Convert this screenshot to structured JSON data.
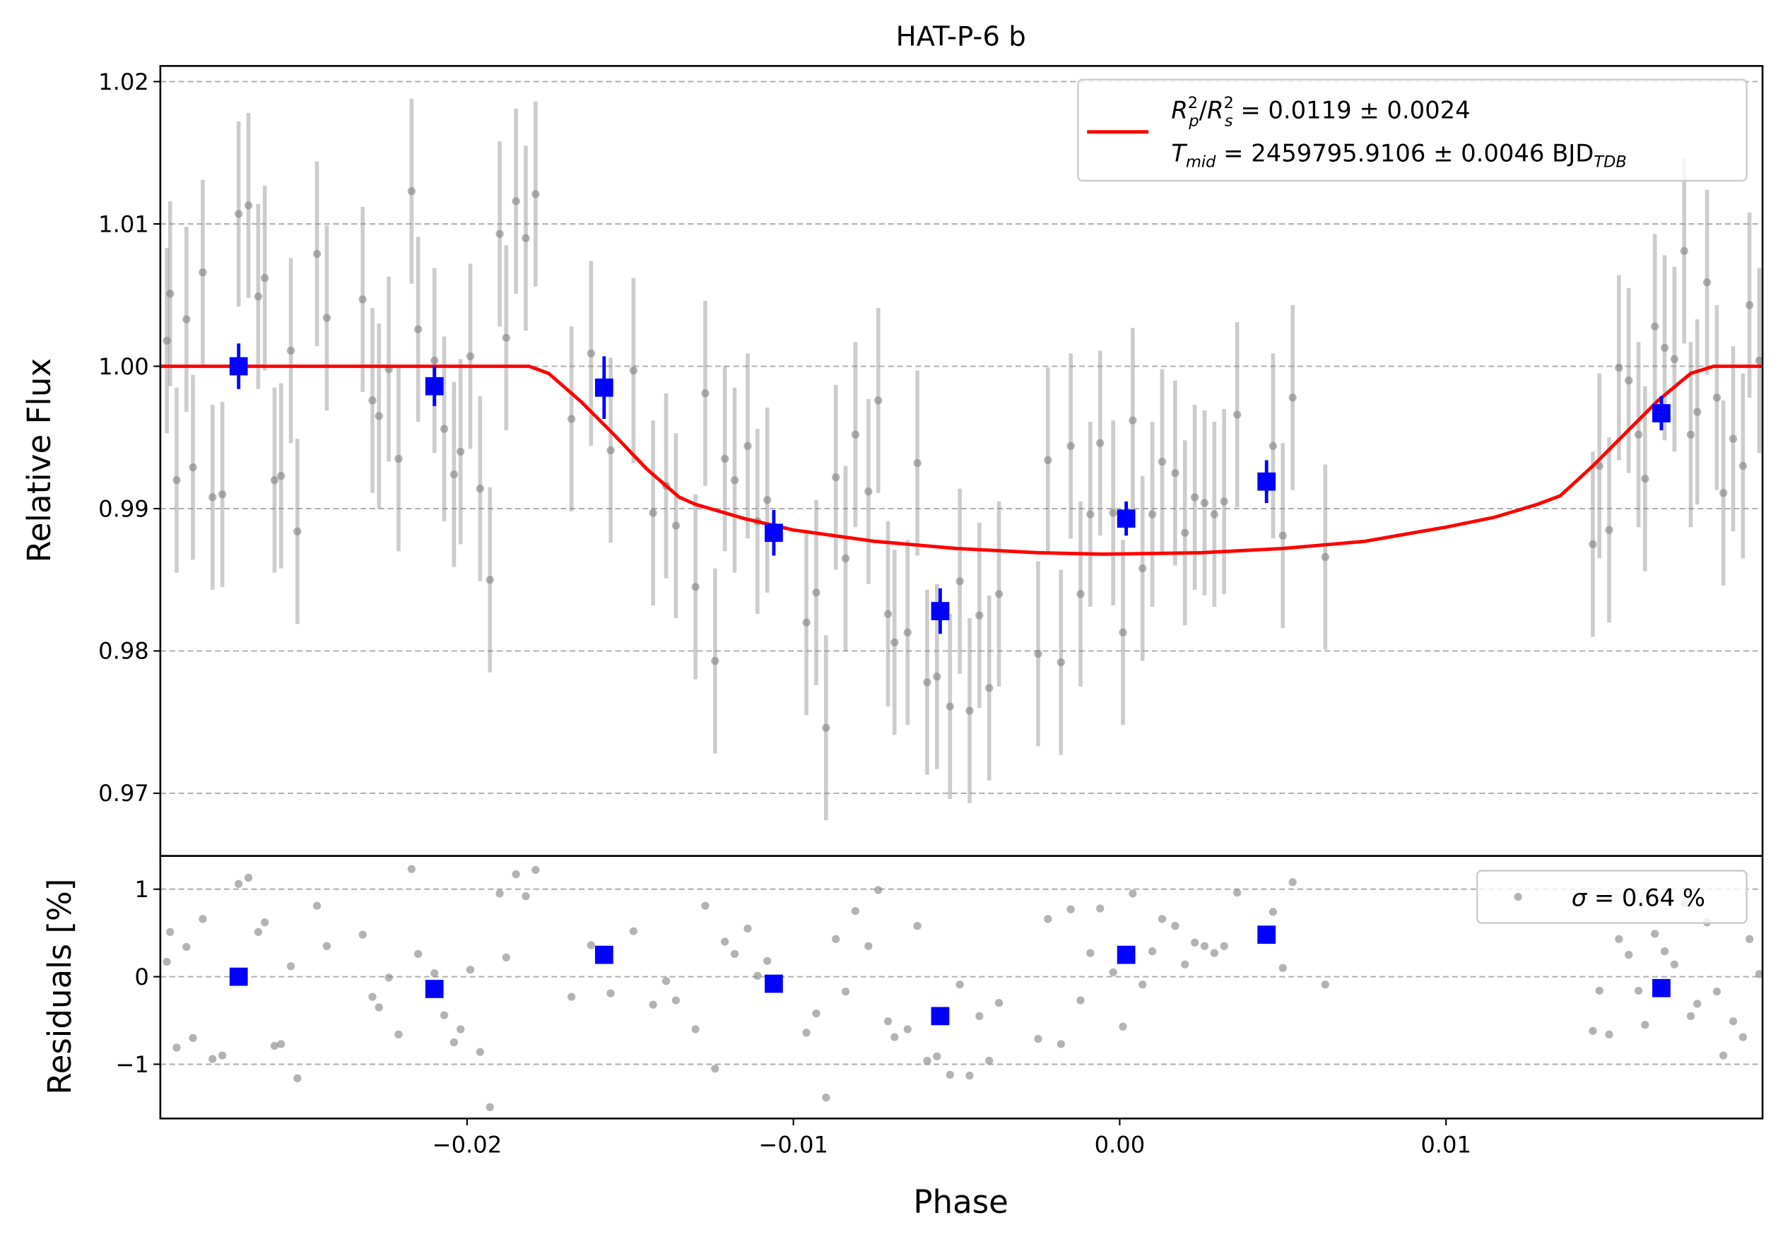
{
  "chart_data": [
    {
      "type": "errorbar",
      "title": "HAT-P-6 b",
      "ylabel": "Relative Flux",
      "xlim": [
        -0.0294,
        0.0197
      ],
      "ylim": [
        0.9656,
        1.0211
      ],
      "yticks": [
        0.97,
        0.98,
        0.99,
        {
          "value": 1,
          "label": "1.00"
        },
        1.01,
        1.02
      ],
      "grid": true,
      "series": [
        {
          "kind": "line",
          "color": "#ff0000",
          "label_parts": [
            "R",
            "2",
            "p",
            "/",
            "R",
            "2",
            "s",
            " = 0.0119 ± 0.0024"
          ],
          "label2_parts": [
            "T",
            "mid",
            " = 2459795.9106 ± 0.0046 BJD",
            "TDB"
          ],
          "x": [
            -0.0294,
            -0.0181,
            -0.0175,
            -0.0165,
            -0.0155,
            -0.0145,
            -0.0135,
            -0.013,
            -0.0115,
            -0.01,
            -0.0075,
            -0.005,
            -0.0025,
            -0.0005,
            0.0025,
            0.005,
            0.0075,
            0.01,
            0.0115,
            0.0128,
            0.0135,
            0.0145,
            0.0155,
            0.0165,
            0.0175,
            0.0182,
            0.0197
          ],
          "values": [
            1,
            1,
            0.9995,
            0.9975,
            0.9952,
            0.9928,
            0.9908,
            0.9903,
            0.9893,
            0.9885,
            0.9877,
            0.9872,
            0.9869,
            0.9868,
            0.9869,
            0.9872,
            0.9877,
            0.9887,
            0.9894,
            0.9903,
            0.9909,
            0.993,
            0.9953,
            0.9976,
            0.9995,
            1,
            1
          ]
        },
        {
          "kind": "points",
          "color": "#808080",
          "yerr": 0.0065,
          "x": [
            -0.0292,
            -0.0291,
            -0.0289,
            -0.0286,
            -0.0284,
            -0.0281,
            -0.0278,
            -0.0275,
            -0.027,
            -0.0267,
            -0.0264,
            -0.0262,
            -0.0259,
            -0.0257,
            -0.0254,
            -0.0252,
            -0.0246,
            -0.0243,
            -0.0232,
            -0.0229,
            -0.0227,
            -0.0224,
            -0.0221,
            -0.0217,
            -0.0215,
            -0.021,
            -0.0207,
            -0.0204,
            -0.0202,
            -0.0199,
            -0.0196,
            -0.0193,
            -0.019,
            -0.0188,
            -0.0185,
            -0.0182,
            -0.0179,
            -0.0168,
            -0.0162,
            -0.0156,
            -0.0149,
            -0.0143,
            -0.0139,
            -0.0136,
            -0.013,
            -0.0127,
            -0.0124,
            -0.0121,
            -0.0118,
            -0.0114,
            -0.0111,
            -0.0108,
            -0.0096,
            -0.0093,
            -0.009,
            -0.0087,
            -0.0084,
            -0.0081,
            -0.0077,
            -0.0074,
            -0.0071,
            -0.0069,
            -0.0065,
            -0.0062,
            -0.0059,
            -0.0056,
            -0.0052,
            -0.0049,
            -0.0046,
            -0.0043,
            -0.004,
            -0.0037,
            -0.0025,
            -0.0022,
            -0.0018,
            -0.0015,
            -0.0012,
            -0.0009,
            -0.0006,
            -0.0002,
            0.0001,
            0.0004,
            0.0007,
            0.001,
            0.0013,
            0.0017,
            0.002,
            0.0023,
            0.0026,
            0.0029,
            0.0032,
            0.0036,
            0.0047,
            0.005,
            0.0053,
            0.0063,
            0.0145,
            0.0147,
            0.015,
            0.0153,
            0.0156,
            0.0159,
            0.0161,
            0.0164,
            0.0167,
            0.017,
            0.0173,
            0.0175,
            0.0177,
            0.018,
            0.0183,
            0.0185,
            0.0188,
            0.0191,
            0.0193,
            0.0196
          ],
          "values": [
            1.0018,
            1.0051,
            0.992,
            1.0033,
            0.9929,
            1.0066,
            0.9908,
            0.991,
            1.0107,
            1.0113,
            1.0049,
            1.0062,
            0.992,
            0.9923,
            1.0011,
            0.9884,
            1.0079,
            1.0034,
            1.0047,
            0.9976,
            0.9965,
            0.9998,
            0.9935,
            1.0123,
            1.0026,
            1.0004,
            0.9956,
            0.9924,
            0.994,
            1.0007,
            0.9914,
            0.985,
            1.0093,
            1.002,
            1.0116,
            1.009,
            1.0121,
            0.9963,
            1.0009,
            0.9941,
            0.9997,
            0.9897,
            0.9916,
            0.9888,
            0.9845,
            0.9981,
            0.9793,
            0.9935,
            0.992,
            0.9944,
            0.9891,
            0.9906,
            0.982,
            0.9841,
            0.9746,
            0.9922,
            0.9865,
            0.9952,
            0.9912,
            0.9976,
            0.9826,
            0.9806,
            0.9813,
            0.9932,
            0.9778,
            0.9782,
            0.9761,
            0.9849,
            0.9758,
            0.9825,
            0.9774,
            0.984,
            0.9798,
            0.9934,
            0.9792,
            0.9944,
            0.984,
            0.9896,
            0.9946,
            0.9897,
            0.9813,
            0.9962,
            0.9858,
            0.9896,
            0.9933,
            0.9925,
            0.9883,
            0.9908,
            0.9904,
            0.9896,
            0.9905,
            0.9966,
            0.9944,
            0.9881,
            0.9978,
            0.9866,
            0.9875,
            0.993,
            0.9885,
            0.9999,
            0.999,
            0.9952,
            0.9921,
            1.0028,
            1.0013,
            1.0005,
            1.0081,
            0.9952,
            0.9968,
            1.0059,
            0.9978,
            0.9911,
            0.9949,
            0.993,
            1.0043,
            1.0004
          ]
        },
        {
          "kind": "binned",
          "color": "#0000ff",
          "x": [
            -0.027,
            -0.021,
            -0.0158,
            -0.0106,
            -0.0055,
            0.0002,
            0.0045,
            0.0166
          ],
          "values": [
            1.0,
            0.9986,
            0.9985,
            0.9883,
            0.9828,
            0.9893,
            0.9919,
            0.9967
          ],
          "yerr": [
            0.0016,
            0.0014,
            0.0022,
            0.0016,
            0.0016,
            0.0012,
            0.0015,
            0.0012
          ]
        }
      ]
    },
    {
      "type": "errorbar",
      "xlabel": "Phase",
      "ylabel": "Residuals [%]",
      "xlim": [
        -0.0294,
        0.0197
      ],
      "ylim": [
        -1.62,
        1.38
      ],
      "xticks": [
        {
          "value": -0.02,
          "label": "−0.02"
        },
        {
          "value": -0.01,
          "label": "−0.01"
        },
        {
          "value": 0,
          "label": "0.00"
        },
        0.01
      ],
      "yticks": [
        {
          "value": -1,
          "label": "−1"
        },
        0,
        1
      ],
      "grid": true,
      "series": [
        {
          "kind": "points",
          "color": "#808080",
          "label_parts": [
            "σ",
            " = 0.64 %"
          ],
          "x": [
            -0.0292,
            -0.0291,
            -0.0289,
            -0.0286,
            -0.0284,
            -0.0281,
            -0.0278,
            -0.0275,
            -0.027,
            -0.0267,
            -0.0264,
            -0.0262,
            -0.0259,
            -0.0257,
            -0.0254,
            -0.0252,
            -0.0246,
            -0.0243,
            -0.0232,
            -0.0229,
            -0.0227,
            -0.0224,
            -0.0221,
            -0.0217,
            -0.0215,
            -0.021,
            -0.0207,
            -0.0204,
            -0.0202,
            -0.0199,
            -0.0196,
            -0.0193,
            -0.019,
            -0.0188,
            -0.0185,
            -0.0182,
            -0.0179,
            -0.0168,
            -0.0162,
            -0.0156,
            -0.0149,
            -0.0143,
            -0.0139,
            -0.0136,
            -0.013,
            -0.0127,
            -0.0124,
            -0.0121,
            -0.0118,
            -0.0114,
            -0.0111,
            -0.0108,
            -0.0096,
            -0.0093,
            -0.009,
            -0.0087,
            -0.0084,
            -0.0081,
            -0.0077,
            -0.0074,
            -0.0071,
            -0.0069,
            -0.0065,
            -0.0062,
            -0.0059,
            -0.0056,
            -0.0052,
            -0.0049,
            -0.0046,
            -0.0043,
            -0.004,
            -0.0037,
            -0.0025,
            -0.0022,
            -0.0018,
            -0.0015,
            -0.0012,
            -0.0009,
            -0.0006,
            -0.0002,
            0.0001,
            0.0004,
            0.0007,
            0.001,
            0.0013,
            0.0017,
            0.002,
            0.0023,
            0.0026,
            0.0029,
            0.0032,
            0.0036,
            0.0047,
            0.005,
            0.0053,
            0.0063,
            0.0145,
            0.0147,
            0.015,
            0.0153,
            0.0156,
            0.0159,
            0.0161,
            0.0164,
            0.0167,
            0.017,
            0.0173,
            0.0175,
            0.0177,
            0.018,
            0.0183,
            0.0185,
            0.0188,
            0.0191,
            0.0193,
            0.0196
          ],
          "values": [
            0.17,
            0.51,
            -0.81,
            0.34,
            -0.7,
            0.66,
            -0.94,
            -0.9,
            1.06,
            1.13,
            0.51,
            0.62,
            -0.79,
            -0.77,
            0.12,
            -1.16,
            0.81,
            0.35,
            0.48,
            -0.23,
            -0.35,
            -0.01,
            -0.66,
            1.23,
            0.26,
            0.04,
            -0.44,
            -0.75,
            -0.6,
            0.08,
            -0.86,
            -1.49,
            0.95,
            0.22,
            1.17,
            0.92,
            1.22,
            -0.23,
            0.36,
            -0.19,
            0.52,
            -0.32,
            -0.05,
            -0.27,
            -0.6,
            0.81,
            -1.05,
            0.4,
            0.26,
            0.55,
            0.01,
            0.18,
            -0.64,
            -0.42,
            -1.38,
            0.43,
            -0.17,
            0.75,
            0.35,
            0.99,
            -0.51,
            -0.69,
            -0.6,
            0.58,
            -0.96,
            -0.91,
            -1.12,
            -0.09,
            -1.13,
            -0.45,
            -0.96,
            -0.3,
            -0.71,
            0.66,
            -0.77,
            0.77,
            -0.27,
            0.27,
            0.78,
            0.05,
            -0.57,
            0.95,
            -0.09,
            0.29,
            0.66,
            0.58,
            0.14,
            0.39,
            0.35,
            0.27,
            0.35,
            0.96,
            0.74,
            0.1,
            1.08,
            -0.09,
            -0.62,
            -0.16,
            -0.66,
            0.43,
            0.25,
            -0.16,
            -0.55,
            0.49,
            0.29,
            0.14,
            0.84,
            -0.45,
            -0.31,
            0.62,
            -0.17,
            -0.9,
            -0.51,
            -0.69,
            0.43,
            0.03
          ]
        },
        {
          "kind": "binned",
          "color": "#0000ff",
          "x": [
            -0.027,
            -0.021,
            -0.0158,
            -0.0106,
            -0.0055,
            0.0002,
            0.0045,
            0.0166
          ],
          "values": [
            0.0,
            -0.14,
            0.25,
            -0.08,
            -0.45,
            0.25,
            0.48,
            -0.13
          ]
        }
      ]
    }
  ]
}
